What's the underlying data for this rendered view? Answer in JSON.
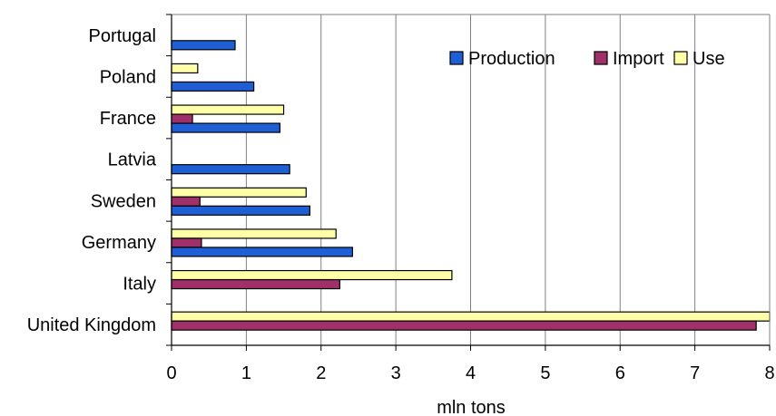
{
  "chart_data": {
    "type": "bar",
    "orientation": "horizontal",
    "categories": [
      "United Kingdom",
      "Italy",
      "Germany",
      "Sweden",
      "Latvia",
      "France",
      "Poland",
      "Portugal"
    ],
    "series": [
      {
        "name": "Production",
        "color": "#1f5fd6",
        "values": [
          0,
          0,
          2.42,
          1.85,
          1.58,
          1.45,
          1.1,
          0.85
        ]
      },
      {
        "name": "Import",
        "color": "#a0306a",
        "values": [
          7.82,
          2.25,
          0.4,
          0.38,
          0,
          0.28,
          0,
          0
        ]
      },
      {
        "name": "Use",
        "color": "#ffffa8",
        "values": [
          8.0,
          3.75,
          2.2,
          1.8,
          0,
          1.5,
          0.35,
          0
        ]
      }
    ],
    "xlabel": "mln tons",
    "xlim": [
      0,
      8
    ],
    "xticks": [
      "0",
      "1",
      "2",
      "3",
      "4",
      "5",
      "6",
      "7",
      "8"
    ],
    "grid": "vertical",
    "legend_position": "top-right"
  }
}
